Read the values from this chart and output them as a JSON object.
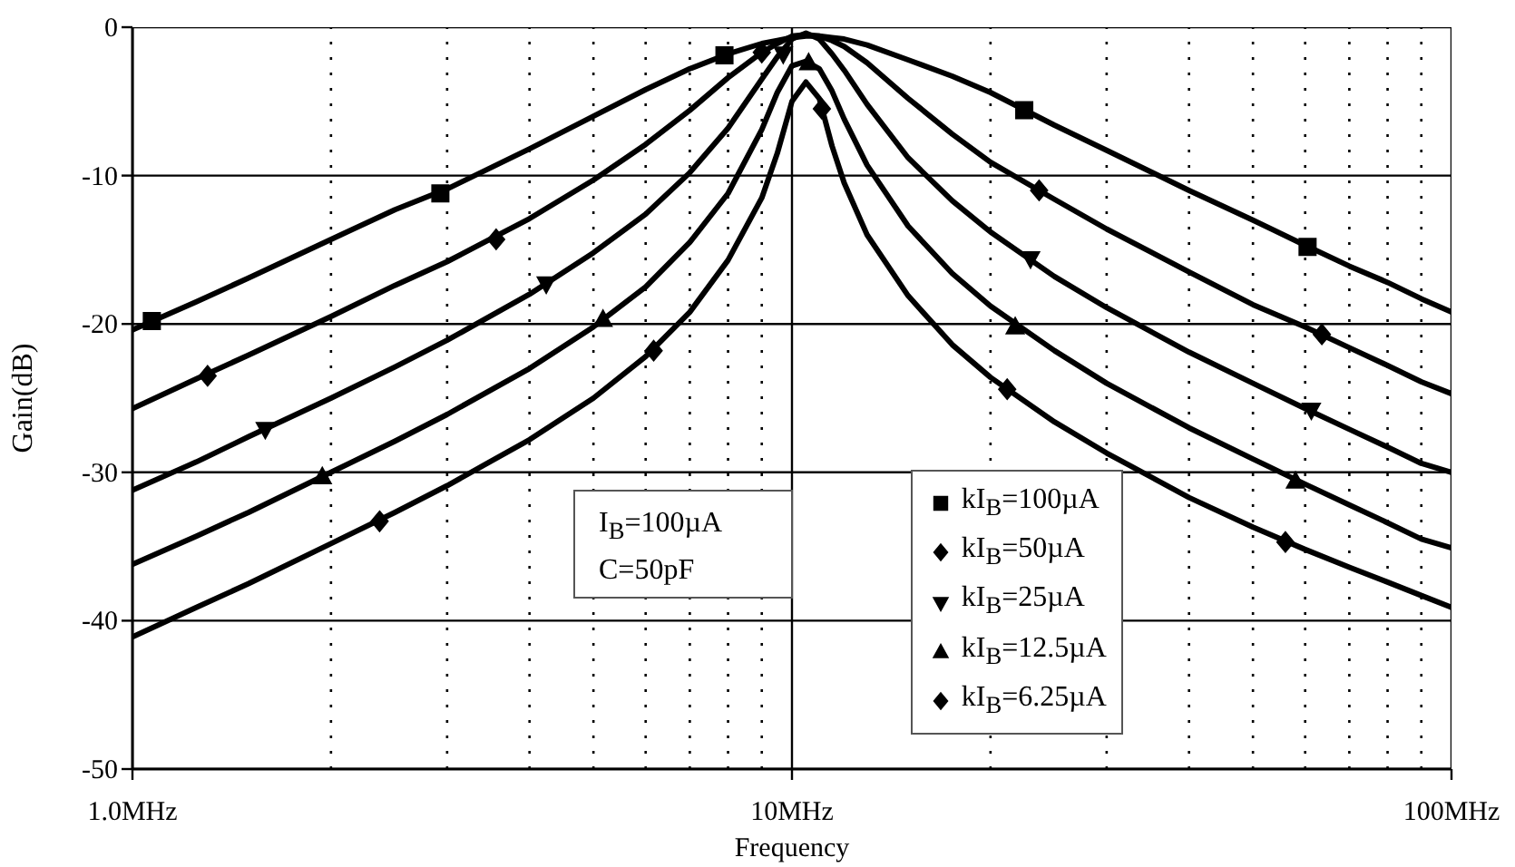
{
  "chart_data": {
    "type": "line",
    "xlabel": "Frequency",
    "ylabel": "Gain(dB)",
    "log": "x",
    "grid": true,
    "legend": "bottom",
    "x": [
      1,
      1.25,
      1.5,
      2,
      2.5,
      3,
      4,
      5,
      6,
      7,
      8,
      9,
      9.5,
      10,
      10.5,
      11,
      11.5,
      12,
      13,
      15,
      17.5,
      20,
      25,
      30,
      40,
      50,
      60,
      70,
      80,
      90,
      100
    ],
    "xlim": [
      1,
      100
    ],
    "xticks": [
      {
        "value": 1,
        "label": "1.0MHz"
      },
      {
        "value": 2,
        "label": null
      },
      {
        "value": 3,
        "label": null
      },
      {
        "value": 4,
        "label": null
      },
      {
        "value": 5,
        "label": null
      },
      {
        "value": 6,
        "label": null
      },
      {
        "value": 7,
        "label": null
      },
      {
        "value": 8,
        "label": null
      },
      {
        "value": 9,
        "label": null
      },
      {
        "value": 10,
        "label": "10MHz"
      },
      {
        "value": 20,
        "label": null
      },
      {
        "value": 30,
        "label": null
      },
      {
        "value": 40,
        "label": null
      },
      {
        "value": 50,
        "label": null
      },
      {
        "value": 60,
        "label": null
      },
      {
        "value": 70,
        "label": null
      },
      {
        "value": 80,
        "label": null
      },
      {
        "value": 90,
        "label": null
      },
      {
        "value": 100,
        "label": "100MHz"
      }
    ],
    "ylim": [
      -50,
      0
    ],
    "yticks": [
      -50,
      -40,
      -30,
      -20,
      -10,
      0
    ],
    "annotations": [
      "I$_{B}$=100µA",
      "C=50pF"
    ],
    "series": [
      {
        "color": "#000000",
        "values": [
          -20.4,
          -18.5,
          -16.9,
          -14.3,
          -12.3,
          -10.9,
          -8.2,
          -6.0,
          -4.2,
          -2.8,
          -1.8,
          -1.1,
          -0.9,
          -0.7,
          -0.6,
          -0.6,
          -0.7,
          -0.8,
          -1.2,
          -2.2,
          -3.3,
          -4.4,
          -6.6,
          -8.3,
          -11.0,
          -13.0,
          -14.7,
          -16.1,
          -17.2,
          -18.3,
          -19.2
        ]
      },
      {
        "color": "#000000",
        "values": [
          -25.7,
          -23.7,
          -22.1,
          -19.5,
          -17.4,
          -15.8,
          -12.9,
          -10.3,
          -7.9,
          -5.6,
          -3.4,
          -1.7,
          -1.1,
          -0.6,
          -0.5,
          -0.6,
          -0.9,
          -1.3,
          -2.4,
          -4.8,
          -7.2,
          -9.1,
          -11.6,
          -13.6,
          -16.5,
          -18.7,
          -20.2,
          -21.6,
          -22.8,
          -23.9,
          -24.7
        ]
      },
      {
        "color": "#000000",
        "values": [
          -31.2,
          -29.3,
          -27.6,
          -25.0,
          -22.9,
          -21.1,
          -18.0,
          -15.2,
          -12.6,
          -9.8,
          -6.8,
          -3.5,
          -2.0,
          -0.8,
          -0.4,
          -0.8,
          -1.8,
          -2.9,
          -5.2,
          -8.8,
          -11.7,
          -13.8,
          -16.8,
          -18.9,
          -21.9,
          -24.0,
          -25.7,
          -27.1,
          -28.3,
          -29.4,
          -30.0
        ]
      },
      {
        "color": "#000000",
        "values": [
          -36.2,
          -34.3,
          -32.7,
          -30.0,
          -27.9,
          -26.1,
          -23.0,
          -20.2,
          -17.5,
          -14.5,
          -11.2,
          -6.9,
          -4.4,
          -2.6,
          -2.3,
          -2.8,
          -4.3,
          -6.2,
          -9.3,
          -13.4,
          -16.6,
          -18.8,
          -21.8,
          -24.0,
          -27.0,
          -29.1,
          -30.8,
          -32.2,
          -33.4,
          -34.5,
          -35.1
        ]
      },
      {
        "color": "#000000",
        "values": [
          -41.1,
          -39.1,
          -37.5,
          -34.8,
          -32.7,
          -30.9,
          -27.8,
          -25.0,
          -22.2,
          -19.2,
          -15.7,
          -11.5,
          -8.5,
          -5.0,
          -3.7,
          -4.8,
          -8.0,
          -10.5,
          -14.0,
          -18.1,
          -21.4,
          -23.6,
          -26.6,
          -28.7,
          -31.7,
          -33.7,
          -35.2,
          -36.4,
          -37.4,
          -38.3,
          -39.1
        ]
      },
      {
        "type": "scatter",
        "name": "kI$_{B}$=100µA",
        "marker": "square",
        "color": "#000000",
        "x": [
          1.07,
          2.93,
          7.9,
          22.5,
          60.5
        ],
        "values": [
          -19.8,
          -11.2,
          -1.9,
          -5.6,
          -14.8
        ]
      },
      {
        "type": "scatter",
        "name": "kI$_{B}$=50µA",
        "marker": "diamond",
        "color": "#000000",
        "x": [
          1.3,
          3.56,
          9.0,
          23.7,
          63.6
        ],
        "values": [
          -23.5,
          -14.3,
          -1.7,
          -11.0,
          -20.7
        ]
      },
      {
        "type": "scatter",
        "name": "kI$_{B}$=25µA",
        "marker": "triangle-down",
        "color": "#000000",
        "x": [
          1.59,
          4.24,
          9.7,
          23.0,
          61.3
        ],
        "values": [
          -27.1,
          -17.3,
          -1.8,
          -15.6,
          -25.8
        ]
      },
      {
        "type": "scatter",
        "name": "kI$_{B}$=12.5µA",
        "marker": "triangle",
        "color": "#000000",
        "x": [
          1.94,
          5.17,
          10.6,
          21.8,
          58.0
        ],
        "values": [
          -30.3,
          -19.7,
          -2.4,
          -20.2,
          -30.6
        ]
      },
      {
        "type": "scatter",
        "name": "kI$_{B}$=6.25µA",
        "marker": "diamond",
        "color": "#000000",
        "x": [
          2.37,
          6.17,
          11.1,
          21.2,
          56.0
        ],
        "values": [
          -33.3,
          -21.8,
          -5.5,
          -24.4,
          -34.7
        ]
      }
    ]
  }
}
